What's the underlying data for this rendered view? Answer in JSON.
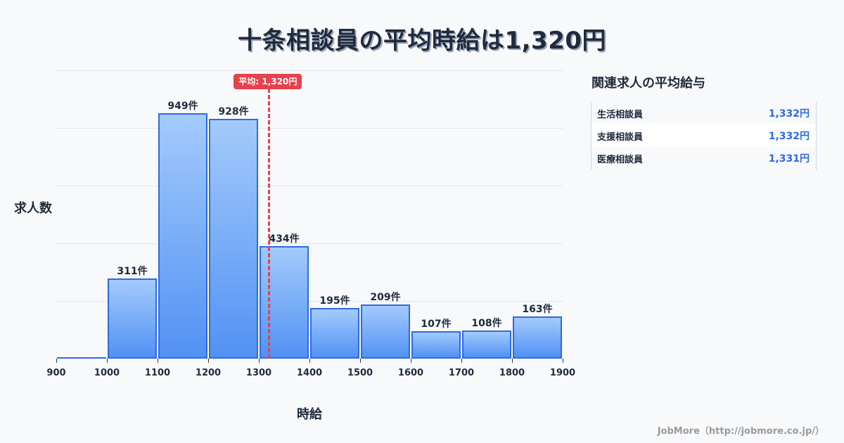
{
  "title": "十条相談員の平均時給は1,320円",
  "chart_data": {
    "type": "bar",
    "title": "十条相談員の平均時給は1,320円",
    "xlabel": "時給",
    "ylabel": "求人数",
    "bins": [
      [
        900,
        1000
      ],
      [
        1000,
        1100
      ],
      [
        1100,
        1200
      ],
      [
        1200,
        1300
      ],
      [
        1300,
        1400
      ],
      [
        1400,
        1500
      ],
      [
        1500,
        1600
      ],
      [
        1600,
        1700
      ],
      [
        1700,
        1800
      ],
      [
        1800,
        1900
      ]
    ],
    "categories": [
      "900-1000",
      "1000-1100",
      "1100-1200",
      "1200-1300",
      "1300-1400",
      "1400-1500",
      "1500-1600",
      "1600-1700",
      "1700-1800",
      "1800-1900"
    ],
    "values": [
      0,
      311,
      949,
      928,
      434,
      195,
      209,
      107,
      108,
      163
    ],
    "value_labels": [
      "",
      "311件",
      "949件",
      "928件",
      "434件",
      "195件",
      "209件",
      "107件",
      "108件",
      "163件"
    ],
    "x_ticks": [
      "900",
      "1000",
      "1100",
      "1200",
      "1300",
      "1400",
      "1500",
      "1600",
      "1700",
      "1800",
      "1900"
    ],
    "xlim": [
      900,
      1900
    ],
    "ylim": [
      0,
      1115
    ],
    "grid": true,
    "mean": 1320,
    "mean_label": "平均: 1,320円"
  },
  "sidebar": {
    "title": "関連求人の平均給与",
    "items": [
      {
        "name": "生活相談員",
        "value": "1,332円"
      },
      {
        "name": "支援相談員",
        "value": "1,332円"
      },
      {
        "name": "医療相談員",
        "value": "1,331円"
      }
    ]
  },
  "footer": "JobMore（http://jobmore.co.jp/）",
  "colors": {
    "bar_top": "#a3cbfb",
    "bar_bottom": "#5291f4",
    "bar_border": "#2f6ae0",
    "mean_line": "#e5424d",
    "side_value": "#2f6ae0"
  }
}
